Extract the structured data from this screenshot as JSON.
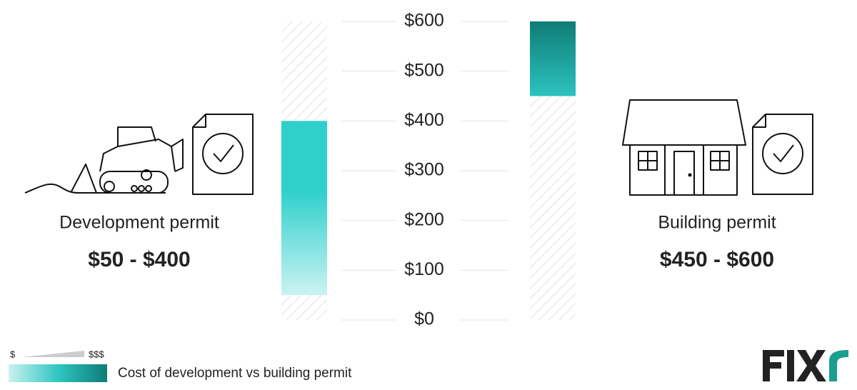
{
  "chart_data": {
    "type": "range",
    "categories": [
      "Development permit",
      "Building permit"
    ],
    "low": [
      50,
      450
    ],
    "high": [
      400,
      600
    ],
    "value_labels": [
      "$50 - $400",
      "$450 - $600"
    ],
    "colors": [
      "#2fd0cc",
      "#0f7c77"
    ],
    "ylim": [
      0,
      600
    ],
    "yticks": [
      {
        "value": 0,
        "label": "$0"
      },
      {
        "value": 100,
        "label": "$100"
      },
      {
        "value": 200,
        "label": "$200"
      },
      {
        "value": 300,
        "label": "$300"
      },
      {
        "value": 400,
        "label": "$400"
      },
      {
        "value": 500,
        "label": "$500"
      },
      {
        "value": 600,
        "label": "$600"
      }
    ],
    "grid": true,
    "legend": {
      "low_label": "$",
      "high_label": "$$$",
      "text": "Cost of development vs building permit"
    }
  }
}
